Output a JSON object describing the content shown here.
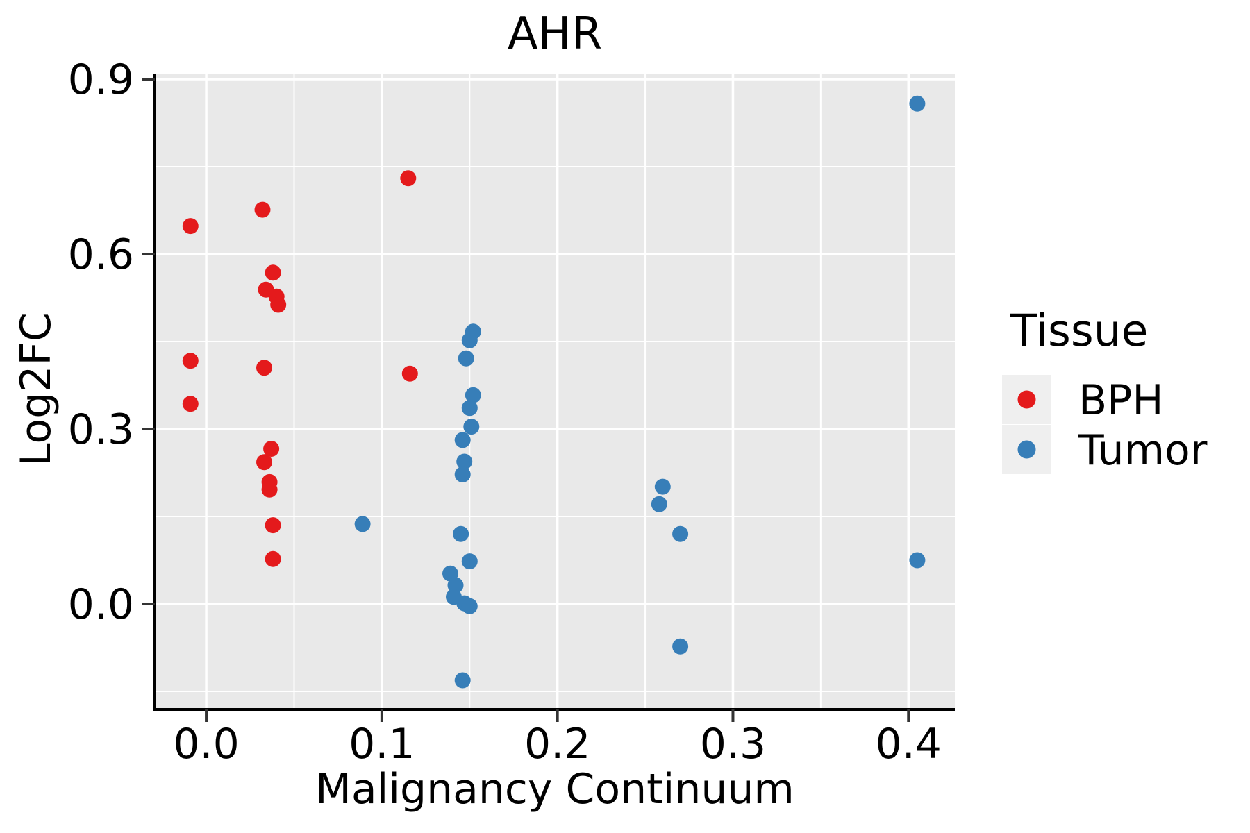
{
  "chart_data": {
    "type": "scatter",
    "title": "AHR",
    "xlabel": "Malignancy Continuum",
    "ylabel": "Log2FC",
    "xlim": [
      -0.0293,
      0.4264
    ],
    "ylim": [
      -0.181,
      0.9083
    ],
    "grid": true,
    "x_ticks": {
      "values": [
        0.0,
        0.1,
        0.2,
        0.3,
        0.4
      ],
      "labels": [
        "0.0",
        "0.1",
        "0.2",
        "0.3",
        "0.4"
      ]
    },
    "y_ticks": {
      "values": [
        0.0,
        0.3,
        0.6,
        0.9
      ],
      "labels": [
        "0.0",
        "0.3",
        "0.6",
        "0.9"
      ]
    },
    "x_minor": [
      0.05,
      0.15,
      0.25,
      0.35
    ],
    "y_minor": [
      -0.15,
      0.15,
      0.45,
      0.75
    ],
    "legend_position": "right",
    "series": [
      {
        "name": "BPH",
        "color": "#e41a1c",
        "points": [
          [
            -0.009,
            0.648
          ],
          [
            0.032,
            0.676
          ],
          [
            -0.009,
            0.417
          ],
          [
            -0.009,
            0.343
          ],
          [
            0.038,
            0.568
          ],
          [
            0.034,
            0.539
          ],
          [
            0.04,
            0.527
          ],
          [
            0.041,
            0.513
          ],
          [
            0.033,
            0.405
          ],
          [
            0.037,
            0.266
          ],
          [
            0.033,
            0.243
          ],
          [
            0.036,
            0.209
          ],
          [
            0.036,
            0.196
          ],
          [
            0.038,
            0.135
          ],
          [
            0.038,
            0.077
          ],
          [
            0.115,
            0.73
          ],
          [
            0.116,
            0.395
          ]
        ]
      },
      {
        "name": "Tumor",
        "color": "#377eb8",
        "points": [
          [
            0.089,
            0.137
          ],
          [
            0.152,
            0.467
          ],
          [
            0.15,
            0.452
          ],
          [
            0.148,
            0.421
          ],
          [
            0.152,
            0.358
          ],
          [
            0.15,
            0.336
          ],
          [
            0.151,
            0.304
          ],
          [
            0.146,
            0.281
          ],
          [
            0.147,
            0.244
          ],
          [
            0.146,
            0.222
          ],
          [
            0.145,
            0.12
          ],
          [
            0.15,
            0.073
          ],
          [
            0.139,
            0.052
          ],
          [
            0.142,
            0.032
          ],
          [
            0.141,
            0.012
          ],
          [
            0.147,
            0.001
          ],
          [
            0.15,
            -0.004
          ],
          [
            0.146,
            -0.131
          ],
          [
            0.26,
            0.201
          ],
          [
            0.258,
            0.171
          ],
          [
            0.27,
            0.12
          ],
          [
            0.27,
            -0.073
          ],
          [
            0.405,
            0.858
          ],
          [
            0.405,
            0.075
          ]
        ]
      }
    ]
  },
  "legend": {
    "title": "Tissue",
    "items": [
      {
        "label": "BPH",
        "color": "#e41a1c"
      },
      {
        "label": "Tumor",
        "color": "#377eb8"
      }
    ]
  },
  "colors": {
    "panel_bg": "#e9e9e9",
    "grid": "#ffffff",
    "legend_key_bg": "#efefef",
    "axis": "#000000",
    "tick": "#333333"
  }
}
